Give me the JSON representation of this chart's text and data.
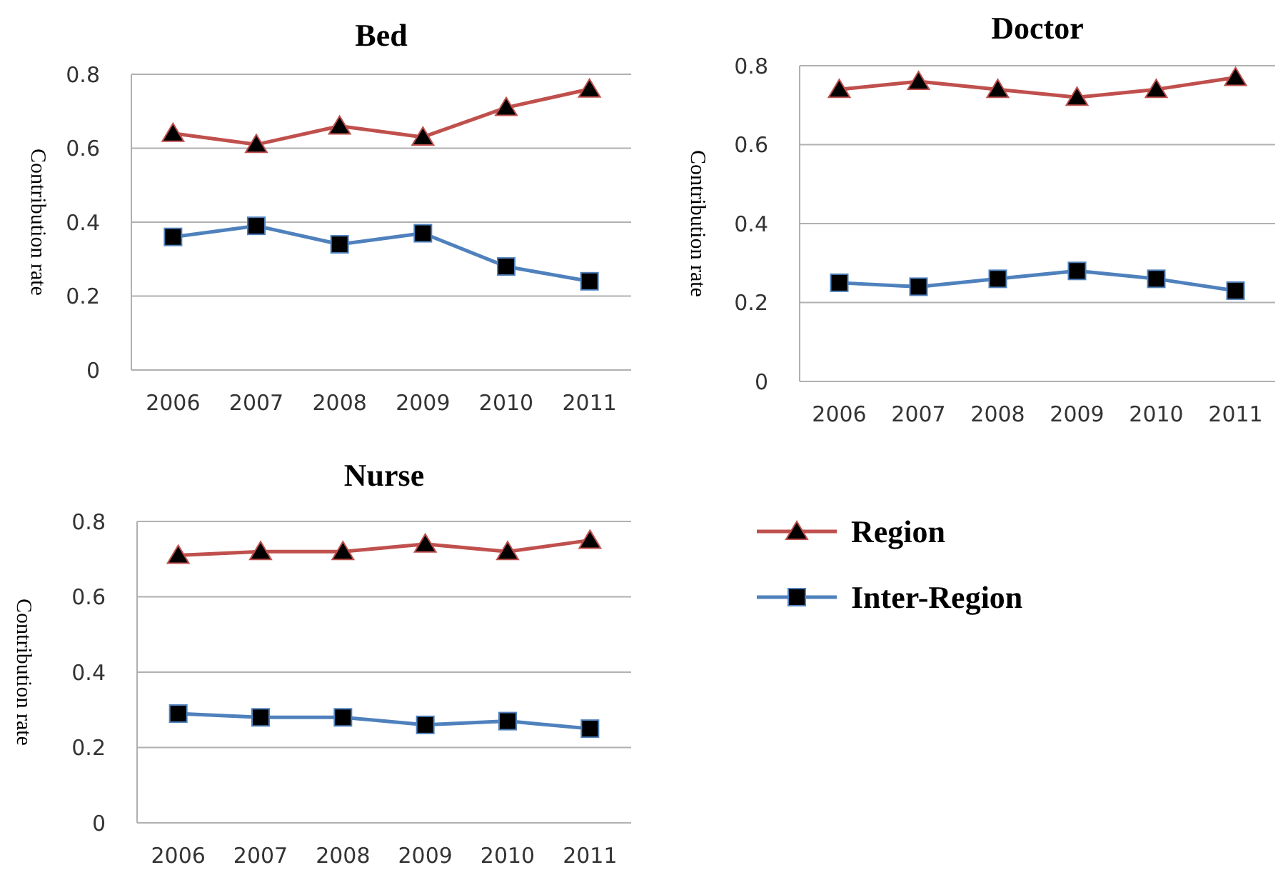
{
  "chart_data": [
    {
      "type": "line",
      "title": "Bed",
      "ylabel": "Contribution rate",
      "categories": [
        "2006",
        "2007",
        "2008",
        "2009",
        "2010",
        "2011"
      ],
      "ylim": [
        0,
        0.8
      ],
      "yticks": [
        0,
        0.2,
        0.4,
        0.6,
        0.8
      ],
      "grid": "y",
      "legend": false,
      "series": [
        {
          "color": "#c0504d",
          "marker": "triangle",
          "values": [
            0.64,
            0.61,
            0.66,
            0.63,
            0.71,
            0.76
          ]
        },
        {
          "color": "#4f81bd",
          "marker": "square",
          "values": [
            0.36,
            0.39,
            0.34,
            0.37,
            0.28,
            0.24
          ]
        }
      ]
    },
    {
      "type": "line",
      "title": "Doctor",
      "ylabel": "Contribution rate",
      "categories": [
        "2006",
        "2007",
        "2008",
        "2009",
        "2010",
        "2011"
      ],
      "ylim": [
        0,
        0.8
      ],
      "yticks": [
        0,
        0.2,
        0.4,
        0.6,
        0.8
      ],
      "grid": "y",
      "legend": false,
      "series": [
        {
          "color": "#c0504d",
          "marker": "triangle",
          "values": [
            0.74,
            0.76,
            0.74,
            0.72,
            0.74,
            0.77
          ]
        },
        {
          "color": "#4f81bd",
          "marker": "square",
          "values": [
            0.25,
            0.24,
            0.26,
            0.28,
            0.26,
            0.23
          ]
        }
      ]
    },
    {
      "type": "line",
      "title": "Nurse",
      "ylabel": "Contribution rate",
      "categories": [
        "2006",
        "2007",
        "2008",
        "2009",
        "2010",
        "2011"
      ],
      "ylim": [
        0,
        0.8
      ],
      "yticks": [
        0,
        0.2,
        0.4,
        0.6,
        0.8
      ],
      "grid": "y",
      "legend": "right",
      "series": [
        {
          "name": "Region",
          "color": "#c0504d",
          "marker": "triangle",
          "values": [
            0.71,
            0.72,
            0.72,
            0.74,
            0.72,
            0.75
          ]
        },
        {
          "name": "Inter-Region",
          "color": "#4f81bd",
          "marker": "square",
          "values": [
            0.29,
            0.28,
            0.28,
            0.26,
            0.27,
            0.25
          ]
        }
      ]
    }
  ]
}
